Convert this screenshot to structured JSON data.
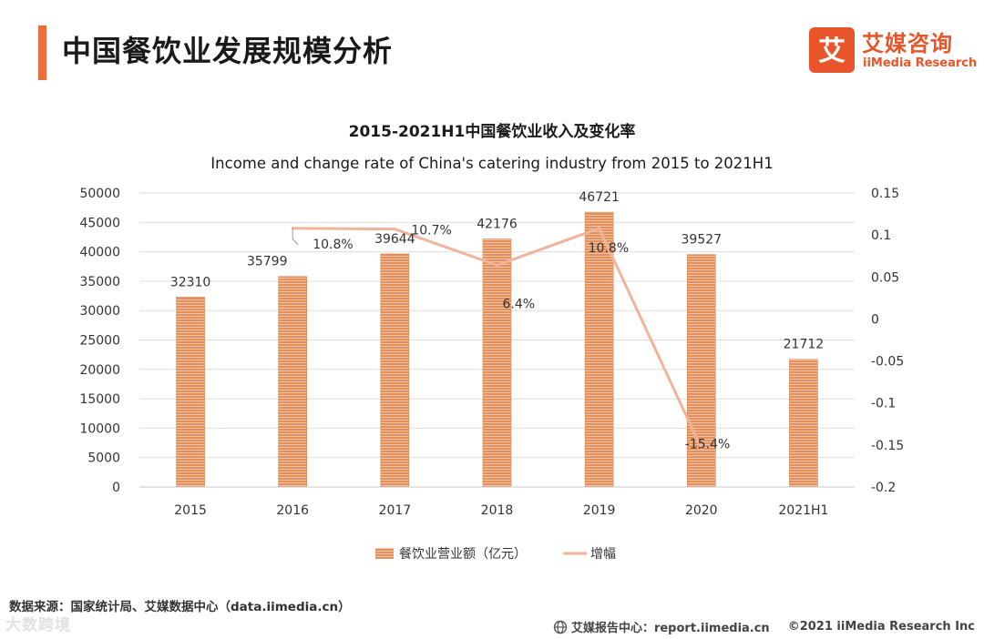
{
  "page": {
    "title": "中国餐饮业发展规模分析",
    "logo_cn": "艾媒咨询",
    "logo_en": "iiMedia Research",
    "logo_glyph": "艾",
    "source": "数据来源：国家统计局、艾媒数据中心（data.iimedia.cn）",
    "watermark": "大数跨境",
    "footer_report": "艾媒报告中心：report.iimedia.cn",
    "footer_copyright": "©2021  iiMedia Research  Inc",
    "colors": {
      "accent": "#ef6b3a",
      "bar": "#e2915e",
      "line": "#f1b49a",
      "grid": "#dedede",
      "brand": "#e8552a"
    }
  },
  "chart_data": {
    "type": "bar",
    "title": "2015-2021H1中国餐饮业收入及变化率",
    "subtitle": "Income and change rate of China's catering industry from 2015 to 2021H1",
    "categories": [
      "2015",
      "2016",
      "2017",
      "2018",
      "2019",
      "2020",
      "2021H1"
    ],
    "series": [
      {
        "name": "餐饮业营业额（亿元）",
        "type": "bar",
        "axis": "left",
        "values": [
          32310,
          35799,
          39644,
          42176,
          46721,
          39527,
          21712
        ],
        "labels": [
          "32310",
          "35799",
          "39644",
          "42176",
          "46721",
          "39527",
          "21712"
        ]
      },
      {
        "name": "增幅",
        "type": "line",
        "axis": "right",
        "x": [
          "2016",
          "2017",
          "2018",
          "2019",
          "2020"
        ],
        "values": [
          0.108,
          0.107,
          0.064,
          0.108,
          -0.154
        ],
        "labels": [
          "10.8%",
          "10.7%",
          "6.4%",
          "10.8%",
          "-15.4%"
        ]
      }
    ],
    "left_axis": {
      "ylim": [
        0,
        50000
      ],
      "ticks": [
        "0",
        "5000",
        "10000",
        "15000",
        "20000",
        "25000",
        "30000",
        "35000",
        "40000",
        "45000",
        "50000"
      ]
    },
    "right_axis": {
      "ylim": [
        -0.2,
        0.15
      ],
      "ticks": [
        "-0.2",
        "-0.15",
        "-0.1",
        "-0.05",
        "0",
        "0.05",
        "0.1",
        "0.15"
      ]
    },
    "grid": true,
    "legend_position": "bottom"
  }
}
